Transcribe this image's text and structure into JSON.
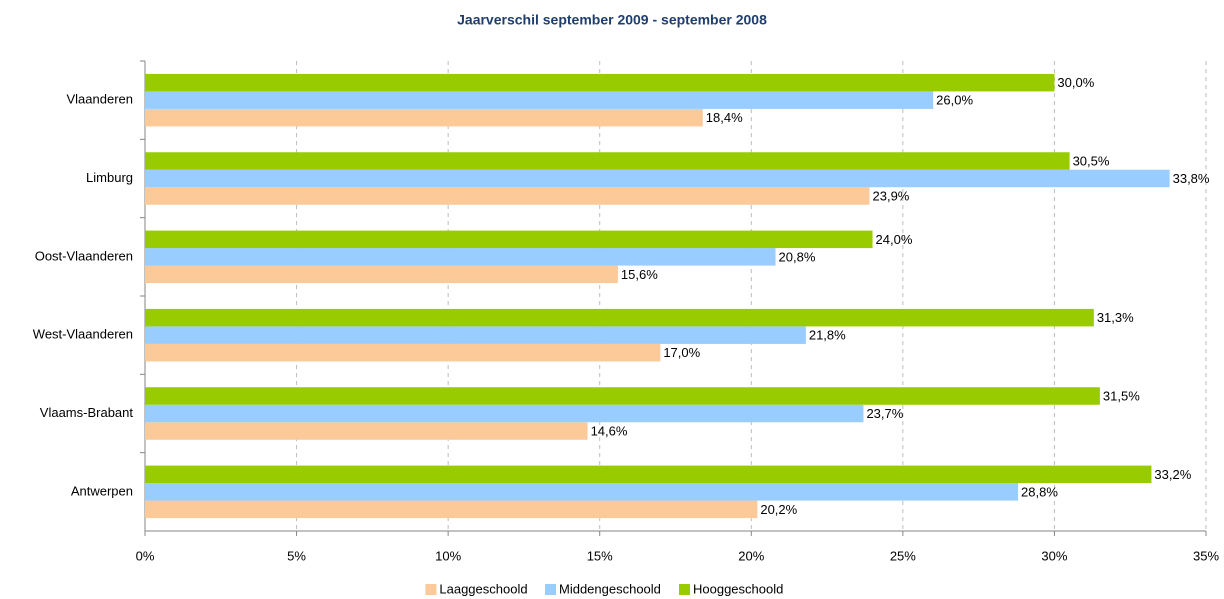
{
  "chart_data": {
    "type": "bar",
    "orientation": "horizontal",
    "title": "Jaarverschil september 2009 - september 2008",
    "categories": [
      "Vlaanderen",
      "Limburg",
      "Oost-Vlaanderen",
      "West-Vlaanderen",
      "Vlaams-Brabant",
      "Antwerpen"
    ],
    "series": [
      {
        "name": "Laaggeschoold",
        "color": "#fcc998",
        "values": [
          18.4,
          23.9,
          15.6,
          17.0,
          14.6,
          20.2
        ],
        "value_labels": [
          "18,4%",
          "23,9%",
          "15,6%",
          "17,0%",
          "14,6%",
          "20,2%"
        ]
      },
      {
        "name": "Middengeschoold",
        "color": "#99ccff",
        "values": [
          26.0,
          33.8,
          20.8,
          21.8,
          23.7,
          28.8
        ],
        "value_labels": [
          "26,0%",
          "33,8%",
          "20,8%",
          "21,8%",
          "23,7%",
          "28,8%"
        ]
      },
      {
        "name": "Hooggeschoold",
        "color": "#99cc00",
        "values": [
          30.0,
          30.5,
          24.0,
          31.3,
          31.5,
          33.2
        ],
        "value_labels": [
          "30,0%",
          "30,5%",
          "24,0%",
          "31,3%",
          "31,5%",
          "33,2%"
        ]
      }
    ],
    "xlim": [
      0,
      35
    ],
    "xticks": [
      {
        "value": 0,
        "label": "0%"
      },
      {
        "value": 5,
        "label": "5%"
      },
      {
        "value": 10,
        "label": "10%"
      },
      {
        "value": 15,
        "label": "15%"
      },
      {
        "value": 20,
        "label": "20%"
      },
      {
        "value": 25,
        "label": "25%"
      },
      {
        "value": 30,
        "label": "30%"
      },
      {
        "value": 35,
        "label": "35%"
      }
    ],
    "grid": true,
    "legend": "bottom"
  }
}
